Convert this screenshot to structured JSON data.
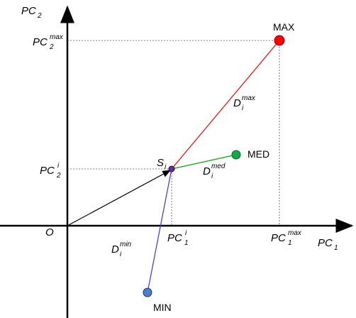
{
  "axes": {
    "x_label": {
      "base": "PC",
      "sub": "1"
    },
    "y_label": {
      "base": "PC",
      "sub": "2"
    },
    "origin": "O"
  },
  "ticks": {
    "x": [
      {
        "base": "PC",
        "sub": "1",
        "sup": "i"
      },
      {
        "base": "PC",
        "sub": "1",
        "sup": "max"
      }
    ],
    "y": [
      {
        "base": "PC",
        "sub": "2",
        "sup": "max"
      },
      {
        "base": "PC",
        "sub": "2",
        "sup": "i"
      }
    ]
  },
  "points": {
    "max": "MAX",
    "med": "MED",
    "min": "MIN",
    "s": {
      "base": "S",
      "sub": "i"
    }
  },
  "distances": [
    {
      "base": "D",
      "sub": "i",
      "sup": "max"
    },
    {
      "base": "D",
      "sub": "i",
      "sup": "med"
    },
    {
      "base": "D",
      "sub": "i",
      "sup": "min"
    }
  ]
}
